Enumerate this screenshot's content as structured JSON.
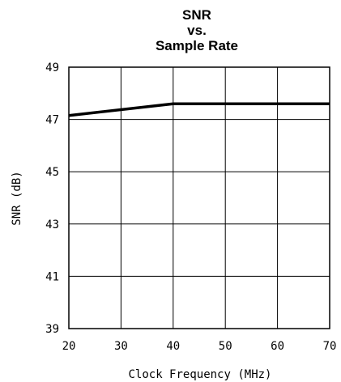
{
  "chart_data": {
    "type": "line",
    "title_lines": [
      "SNR",
      "vs.",
      "Sample Rate"
    ],
    "xlabel": "Clock Frequency (MHz)",
    "ylabel": "SNR (dB)",
    "xlim": [
      20,
      70
    ],
    "ylim": [
      39,
      49
    ],
    "xticks": [
      20,
      30,
      40,
      50,
      60,
      70
    ],
    "yticks": [
      39,
      41,
      43,
      45,
      47,
      49
    ],
    "grid": true,
    "series": [
      {
        "x": [
          20,
          40,
          70
        ],
        "y": [
          47.15,
          47.6,
          47.6
        ]
      }
    ]
  }
}
